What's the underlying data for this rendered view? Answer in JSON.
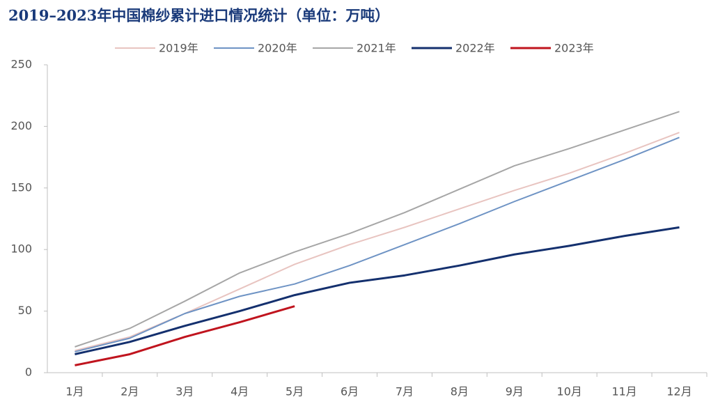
{
  "chart_data": {
    "type": "line",
    "title": "2019–2023年中国棉纱累计进口情况统计（单位：万吨）",
    "categories": [
      "1月",
      "2月",
      "3月",
      "4月",
      "5月",
      "6月",
      "7月",
      "8月",
      "9月",
      "10月",
      "11月",
      "12月"
    ],
    "series": [
      {
        "name": "2019年",
        "color": "#e8c4c0",
        "width": 2,
        "values": [
          18,
          29,
          48,
          68,
          88,
          104,
          118,
          133,
          148,
          162,
          178,
          195
        ]
      },
      {
        "name": "2020年",
        "color": "#6e93c4",
        "width": 2,
        "values": [
          17,
          28,
          48,
          62,
          72,
          87,
          104,
          121,
          139,
          156,
          173,
          191
        ]
      },
      {
        "name": "2021年",
        "color": "#a6a6a6",
        "width": 2,
        "values": [
          21,
          36,
          58,
          81,
          98,
          113,
          130,
          149,
          168,
          182,
          197,
          212
        ]
      },
      {
        "name": "2022年",
        "color": "#14306e",
        "width": 3,
        "values": [
          15,
          25,
          38,
          50,
          63,
          73,
          79,
          87,
          96,
          103,
          111,
          118
        ]
      },
      {
        "name": "2023年",
        "color": "#c0141e",
        "width": 3,
        "values": [
          6,
          15,
          29,
          41,
          54,
          null,
          null,
          null,
          null,
          null,
          null,
          null
        ]
      }
    ],
    "ylim": [
      0,
      250
    ],
    "yticks": [
      0,
      50,
      100,
      150,
      200,
      250
    ],
    "grid": false
  }
}
